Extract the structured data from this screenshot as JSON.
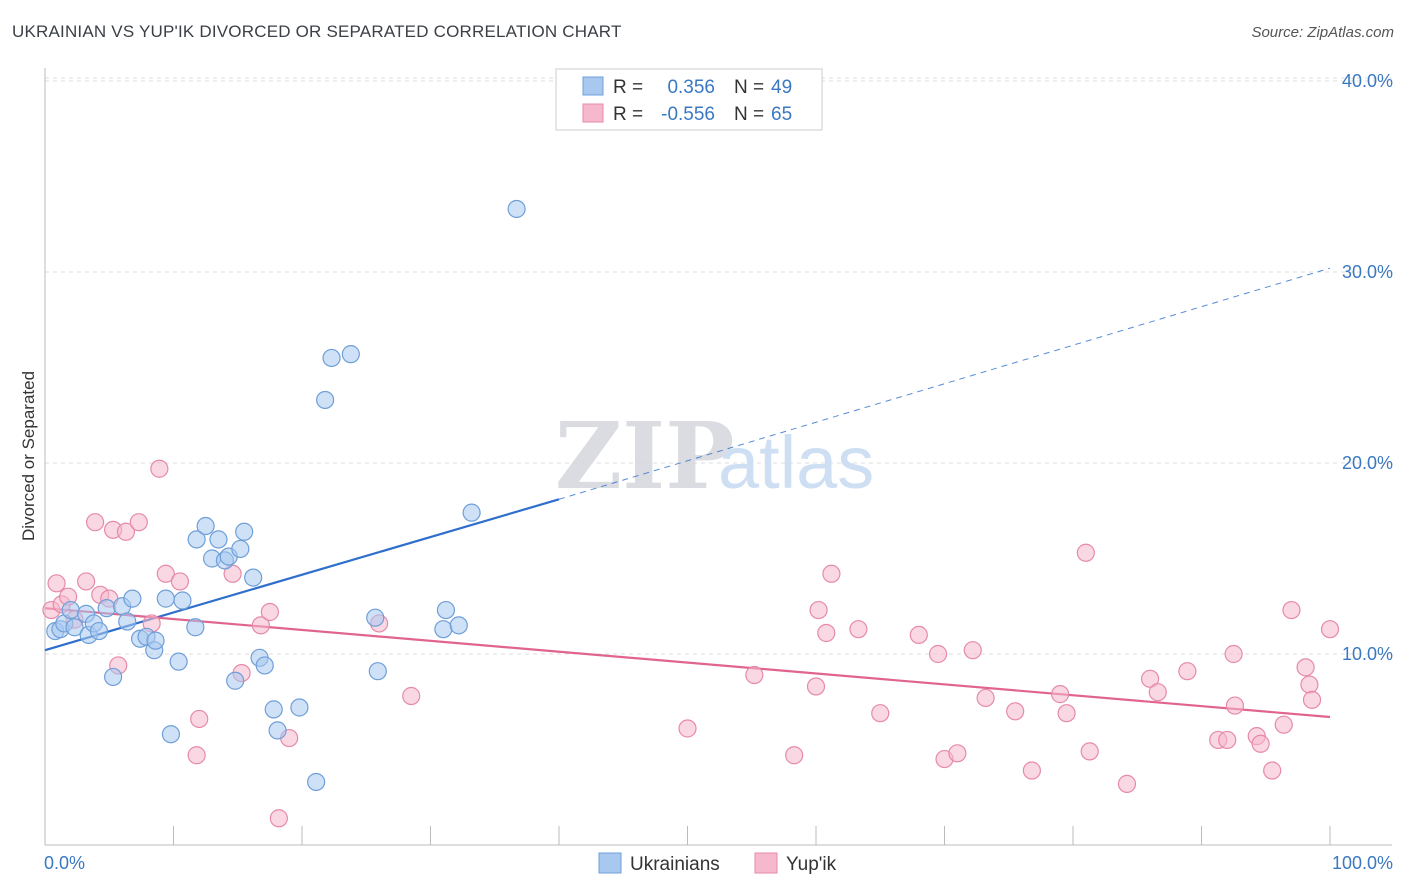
{
  "title": "UKRAINIAN VS YUP'IK DIVORCED OR SEPARATED CORRELATION CHART",
  "source": "Source: ZipAtlas.com",
  "watermark": {
    "zip": "ZIP",
    "atlas": "atlas"
  },
  "legend": {
    "rows": [
      {
        "r_label": "R =",
        "r_value": "0.356",
        "n_label": "N =",
        "n_value": "49"
      },
      {
        "r_label": "R =",
        "r_value": "-0.556",
        "n_label": "N =",
        "n_value": "65"
      }
    ]
  },
  "bottom_legend": {
    "series1": "Ukrainians",
    "series2": "Yup'ik"
  },
  "colors": {
    "ukr_fill": "#a8c8f0",
    "ukr_stroke": "#6f9fd8",
    "ukr_line": "#2f6fcc",
    "yup_fill": "#f6b8cc",
    "yup_stroke": "#e68aa8",
    "yup_line": "#e0648f",
    "tick_text": "#3a78c2",
    "grid": "#dddddd"
  },
  "chart_data": {
    "type": "scatter",
    "title": "UKRAINIAN VS YUP'IK DIVORCED OR SEPARATED CORRELATION CHART",
    "xlabel": "",
    "ylabel": "Divorced or Separated",
    "xlim": [
      0,
      100
    ],
    "ylim": [
      0,
      42
    ],
    "x_tick_labels": [
      "0.0%",
      "100.0%"
    ],
    "y_ticks": [
      10,
      20,
      30,
      40
    ],
    "y_tick_labels": [
      "10.0%",
      "20.0%",
      "30.0%",
      "40.0%"
    ],
    "grid": "horizontal dashed",
    "legend_placement": "top-center",
    "series": [
      {
        "name": "Ukrainians",
        "R": 0.356,
        "N": 49,
        "trend": {
          "x": [
            0,
            40
          ],
          "y": [
            10.2,
            18.1
          ],
          "extended_x": [
            40,
            100
          ],
          "extended_y": [
            18.1,
            30.2
          ]
        },
        "points": [
          {
            "x": 0.8,
            "y": 11.2
          },
          {
            "x": 1.2,
            "y": 11.3
          },
          {
            "x": 1.5,
            "y": 11.6
          },
          {
            "x": 2.0,
            "y": 12.3
          },
          {
            "x": 2.3,
            "y": 11.4
          },
          {
            "x": 3.2,
            "y": 12.1
          },
          {
            "x": 3.4,
            "y": 11.0
          },
          {
            "x": 3.8,
            "y": 11.6
          },
          {
            "x": 4.2,
            "y": 11.2
          },
          {
            "x": 4.8,
            "y": 12.4
          },
          {
            "x": 5.3,
            "y": 8.8
          },
          {
            "x": 6.0,
            "y": 12.5
          },
          {
            "x": 6.4,
            "y": 11.7
          },
          {
            "x": 6.8,
            "y": 12.9
          },
          {
            "x": 7.4,
            "y": 10.8
          },
          {
            "x": 7.9,
            "y": 10.9
          },
          {
            "x": 8.5,
            "y": 10.2
          },
          {
            "x": 8.6,
            "y": 10.7
          },
          {
            "x": 9.4,
            "y": 12.9
          },
          {
            "x": 9.8,
            "y": 5.8
          },
          {
            "x": 10.4,
            "y": 9.6
          },
          {
            "x": 10.7,
            "y": 12.8
          },
          {
            "x": 11.7,
            "y": 11.4
          },
          {
            "x": 11.8,
            "y": 16.0
          },
          {
            "x": 12.5,
            "y": 16.7
          },
          {
            "x": 13.0,
            "y": 15.0
          },
          {
            "x": 13.5,
            "y": 16.0
          },
          {
            "x": 14.0,
            "y": 14.9
          },
          {
            "x": 14.3,
            "y": 15.1
          },
          {
            "x": 14.8,
            "y": 8.6
          },
          {
            "x": 15.2,
            "y": 15.5
          },
          {
            "x": 15.5,
            "y": 16.4
          },
          {
            "x": 16.2,
            "y": 14.0
          },
          {
            "x": 16.7,
            "y": 9.8
          },
          {
            "x": 17.1,
            "y": 9.4
          },
          {
            "x": 17.8,
            "y": 7.1
          },
          {
            "x": 18.1,
            "y": 6.0
          },
          {
            "x": 19.8,
            "y": 7.2
          },
          {
            "x": 21.1,
            "y": 3.3
          },
          {
            "x": 21.8,
            "y": 23.3
          },
          {
            "x": 22.3,
            "y": 25.5
          },
          {
            "x": 23.8,
            "y": 25.7
          },
          {
            "x": 25.7,
            "y": 11.9
          },
          {
            "x": 25.9,
            "y": 9.1
          },
          {
            "x": 31.0,
            "y": 11.3
          },
          {
            "x": 31.2,
            "y": 12.3
          },
          {
            "x": 32.2,
            "y": 11.5
          },
          {
            "x": 33.2,
            "y": 17.4
          },
          {
            "x": 36.7,
            "y": 33.3
          }
        ]
      },
      {
        "name": "Yup'ik",
        "R": -0.556,
        "N": 65,
        "trend": {
          "x": [
            0,
            100
          ],
          "y": [
            12.4,
            6.7
          ]
        },
        "points": [
          {
            "x": 0.5,
            "y": 12.3
          },
          {
            "x": 0.9,
            "y": 13.7
          },
          {
            "x": 1.3,
            "y": 12.6
          },
          {
            "x": 1.8,
            "y": 13.0
          },
          {
            "x": 2.3,
            "y": 11.8
          },
          {
            "x": 3.2,
            "y": 13.8
          },
          {
            "x": 3.9,
            "y": 16.9
          },
          {
            "x": 4.3,
            "y": 13.1
          },
          {
            "x": 5.0,
            "y": 12.9
          },
          {
            "x": 5.3,
            "y": 16.5
          },
          {
            "x": 5.7,
            "y": 9.4
          },
          {
            "x": 6.3,
            "y": 16.4
          },
          {
            "x": 7.3,
            "y": 16.9
          },
          {
            "x": 8.3,
            "y": 11.6
          },
          {
            "x": 8.9,
            "y": 19.7
          },
          {
            "x": 9.4,
            "y": 14.2
          },
          {
            "x": 10.5,
            "y": 13.8
          },
          {
            "x": 11.8,
            "y": 4.7
          },
          {
            "x": 12.0,
            "y": 6.6
          },
          {
            "x": 14.6,
            "y": 14.2
          },
          {
            "x": 15.3,
            "y": 9.0
          },
          {
            "x": 16.8,
            "y": 11.5
          },
          {
            "x": 17.5,
            "y": 12.2
          },
          {
            "x": 18.2,
            "y": 1.4
          },
          {
            "x": 19.0,
            "y": 5.6
          },
          {
            "x": 26.0,
            "y": 11.6
          },
          {
            "x": 28.5,
            "y": 7.8
          },
          {
            "x": 50.0,
            "y": 6.1
          },
          {
            "x": 55.2,
            "y": 8.9
          },
          {
            "x": 58.3,
            "y": 4.7
          },
          {
            "x": 60.0,
            "y": 8.3
          },
          {
            "x": 60.2,
            "y": 12.3
          },
          {
            "x": 60.8,
            "y": 11.1
          },
          {
            "x": 61.2,
            "y": 14.2
          },
          {
            "x": 63.3,
            "y": 11.3
          },
          {
            "x": 65.0,
            "y": 6.9
          },
          {
            "x": 68.0,
            "y": 11.0
          },
          {
            "x": 69.5,
            "y": 10.0
          },
          {
            "x": 70.0,
            "y": 4.5
          },
          {
            "x": 71.0,
            "y": 4.8
          },
          {
            "x": 72.2,
            "y": 10.2
          },
          {
            "x": 73.2,
            "y": 7.7
          },
          {
            "x": 75.5,
            "y": 7.0
          },
          {
            "x": 76.8,
            "y": 3.9
          },
          {
            "x": 79.0,
            "y": 7.9
          },
          {
            "x": 79.5,
            "y": 6.9
          },
          {
            "x": 81.0,
            "y": 15.3
          },
          {
            "x": 81.3,
            "y": 4.9
          },
          {
            "x": 84.2,
            "y": 3.2
          },
          {
            "x": 86.0,
            "y": 8.7
          },
          {
            "x": 86.6,
            "y": 8.0
          },
          {
            "x": 88.9,
            "y": 9.1
          },
          {
            "x": 91.3,
            "y": 5.5
          },
          {
            "x": 92.0,
            "y": 5.5
          },
          {
            "x": 92.5,
            "y": 10.0
          },
          {
            "x": 92.6,
            "y": 7.3
          },
          {
            "x": 94.3,
            "y": 5.7
          },
          {
            "x": 94.6,
            "y": 5.3
          },
          {
            "x": 95.5,
            "y": 3.9
          },
          {
            "x": 96.4,
            "y": 6.3
          },
          {
            "x": 97.0,
            "y": 12.3
          },
          {
            "x": 98.1,
            "y": 9.3
          },
          {
            "x": 98.4,
            "y": 8.4
          },
          {
            "x": 98.6,
            "y": 7.6
          },
          {
            "x": 100.0,
            "y": 11.3
          }
        ]
      }
    ]
  }
}
